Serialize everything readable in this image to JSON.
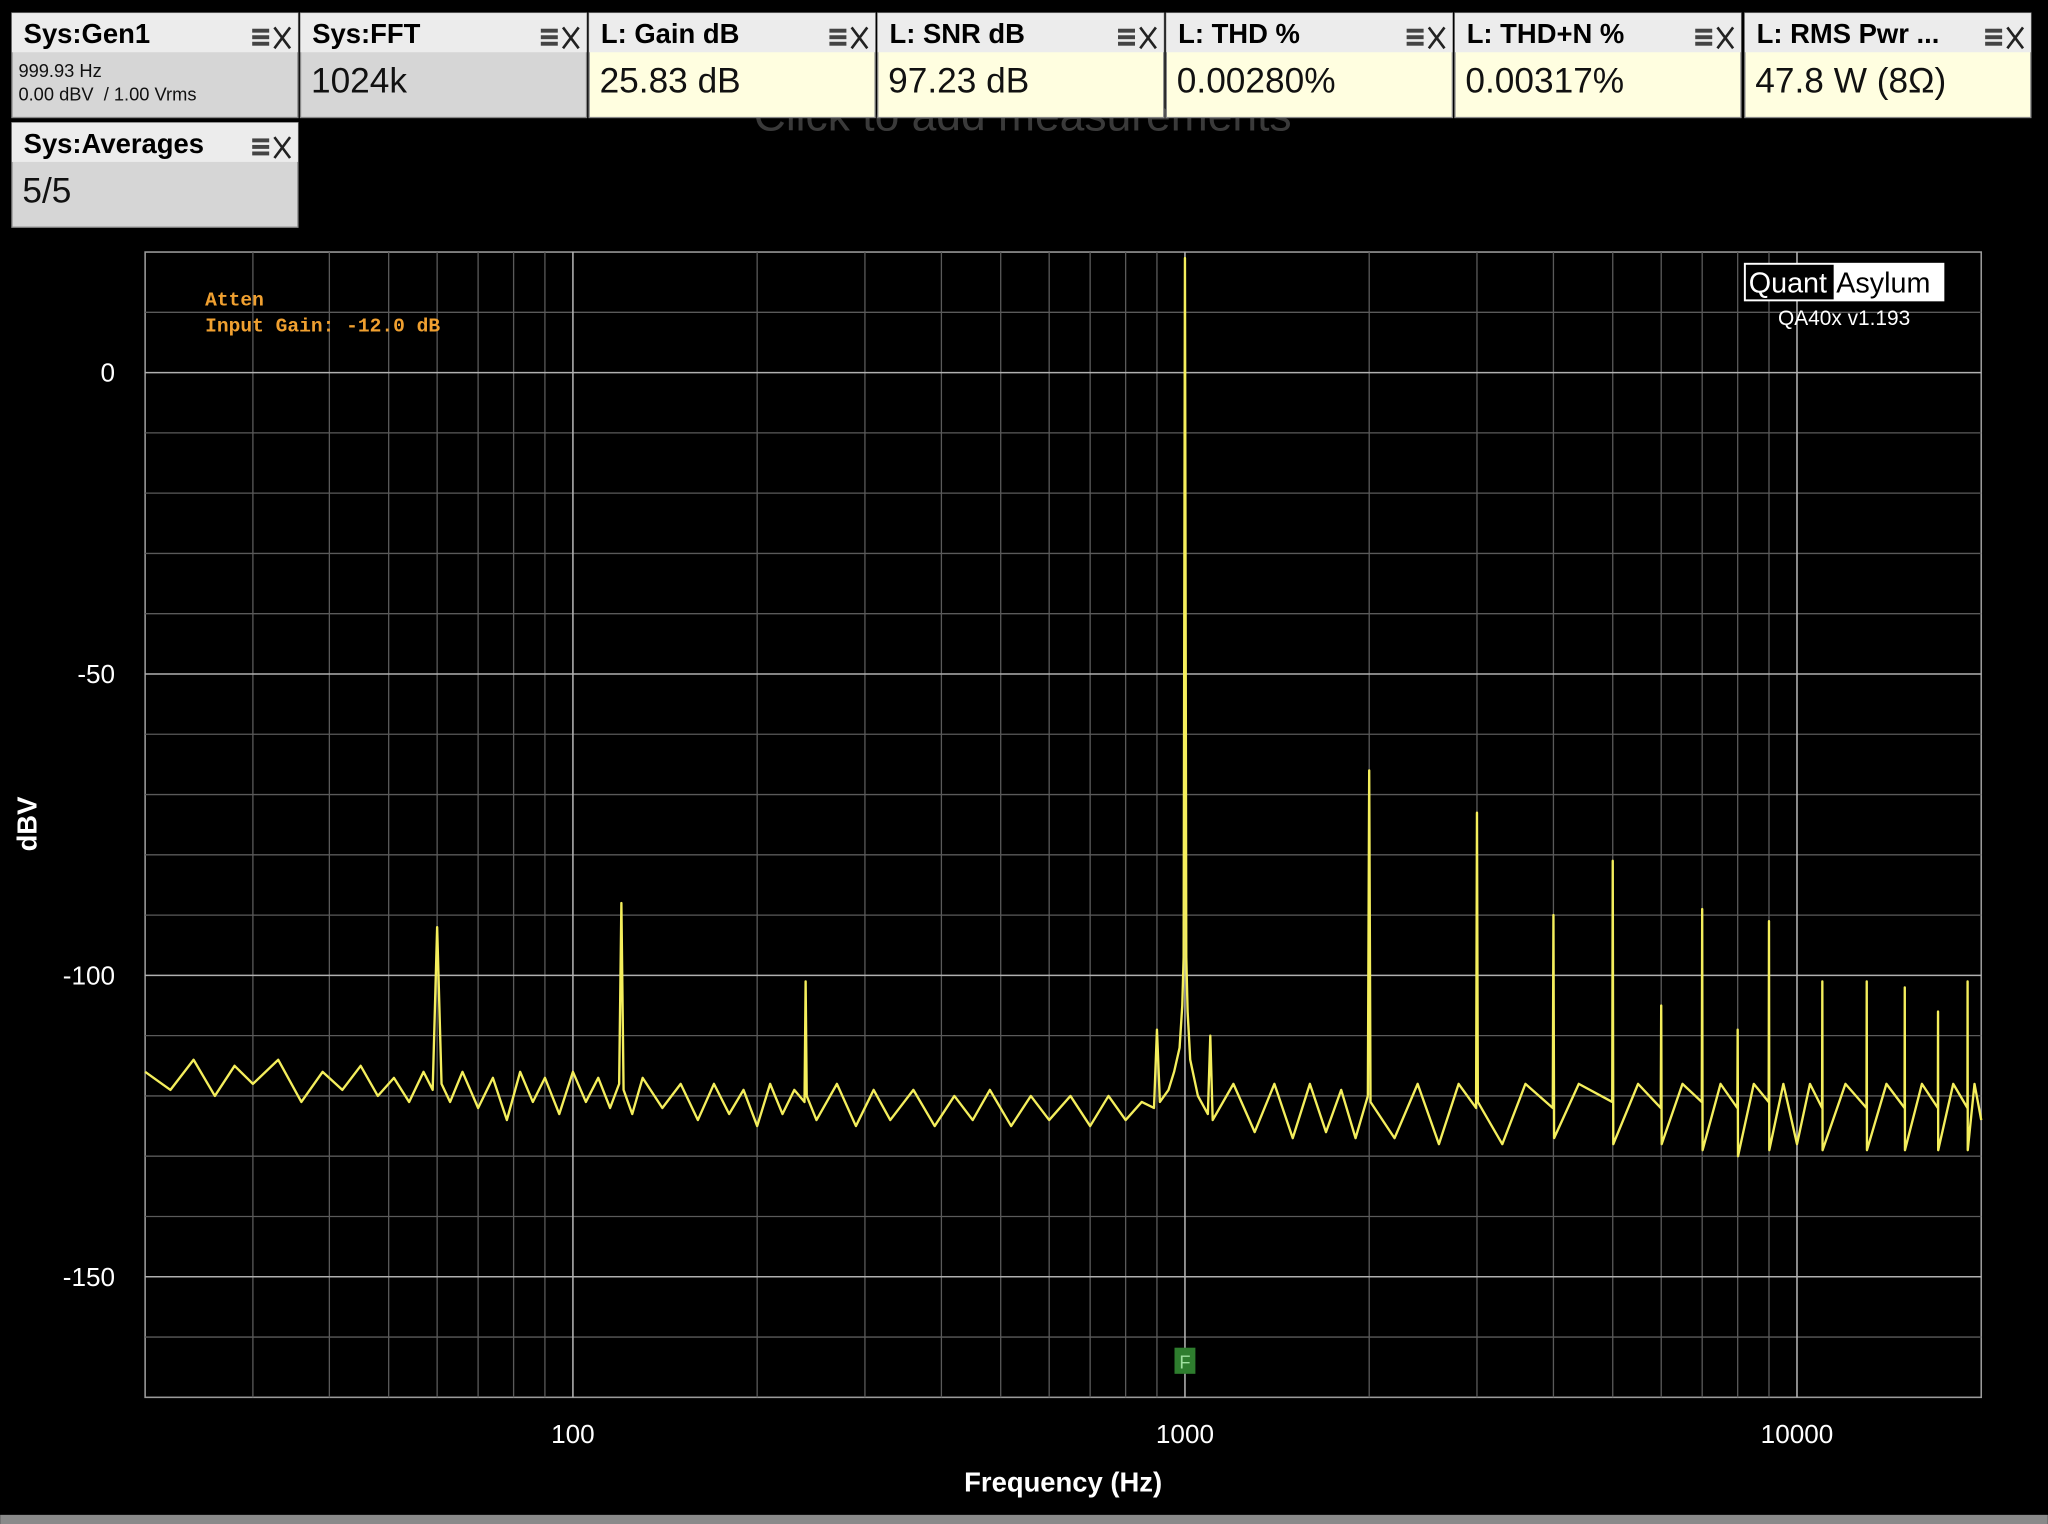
{
  "panels": [
    {
      "title": "Sys:Gen1",
      "details": [
        "999.93 Hz",
        "0.00 dBV  / 1.00 Vrms"
      ],
      "color": "#d6d6d6"
    },
    {
      "title": "Sys:FFT",
      "value": "1024k",
      "color": "#d6d6d6"
    },
    {
      "title": "L: Gain dB",
      "value": "25.83 dB",
      "color": "#fffee0"
    },
    {
      "title": "L: SNR dB",
      "value": "97.23 dB",
      "color": "#fffee0"
    },
    {
      "title": "L: THD %",
      "value": "0.00280%",
      "color": "#fffee0"
    },
    {
      "title": "L: THD+N %",
      "value": "0.00317%",
      "color": "#fffee0"
    },
    {
      "title": "L: RMS Pwr ...",
      "value": "47.8 W (8Ω)",
      "color": "#fffee0"
    },
    {
      "title": "Sys:Averages",
      "value": "5/5",
      "color": "#d6d6d6"
    }
  ],
  "placeholder": "Click to add measurements",
  "chart_data": {
    "type": "line",
    "x_label": "Frequency (Hz)",
    "y_label": "dBV",
    "x_scale": "log",
    "xlim": [
      20,
      20000
    ],
    "xticks": [
      100,
      1000,
      10000
    ],
    "x_minor_grid": [
      30,
      40,
      50,
      60,
      70,
      80,
      90,
      200,
      300,
      400,
      500,
      600,
      700,
      800,
      900,
      2000,
      3000,
      4000,
      5000,
      6000,
      7000,
      8000,
      9000
    ],
    "ylim": [
      -170,
      20
    ],
    "yticks": [
      0,
      -50,
      -100,
      -150
    ],
    "y_minor_grid": [
      -160,
      -140,
      -130,
      -120,
      -110,
      -90,
      -80,
      -70,
      -60,
      -40,
      -30,
      -20,
      -10,
      10
    ],
    "grid": true,
    "color": "#f4ee5c",
    "annotations": [
      "Atten",
      "Input Gain: -12.0 dB"
    ],
    "logo": [
      "Quant",
      "Asylum"
    ],
    "version": "QA40x v1.193",
    "marker": {
      "label": "F",
      "x": 1000
    },
    "x": [
      20,
      22,
      24,
      26,
      28,
      30,
      33,
      36,
      39,
      42,
      45,
      48,
      51,
      54,
      57,
      59,
      60,
      61,
      63,
      66,
      70,
      74,
      78,
      82,
      86,
      90,
      95,
      100,
      105,
      110,
      115,
      119,
      120,
      121,
      125,
      130,
      140,
      150,
      160,
      170,
      180,
      190,
      200,
      210,
      220,
      230,
      239,
      240,
      241,
      250,
      270,
      290,
      310,
      330,
      360,
      390,
      420,
      450,
      480,
      520,
      560,
      600,
      650,
      700,
      750,
      800,
      850,
      890,
      900,
      910,
      940,
      960,
      980,
      990,
      995,
      1000,
      1005,
      1010,
      1020,
      1050,
      1090,
      1100,
      1110,
      1200,
      1300,
      1400,
      1500,
      1600,
      1700,
      1800,
      1900,
      1990,
      2000,
      2010,
      2200,
      2400,
      2600,
      2800,
      2990,
      3000,
      3010,
      3300,
      3600,
      3990,
      4000,
      4010,
      4400,
      4990,
      5000,
      5010,
      5500,
      5990,
      6000,
      6010,
      6500,
      6990,
      7000,
      7010,
      7500,
      7990,
      8000,
      8010,
      8500,
      8990,
      9000,
      9010,
      9500,
      10000,
      10500,
      10990,
      11000,
      11010,
      12000,
      12990,
      13000,
      13010,
      14000,
      14990,
      15000,
      15010,
      16000,
      16990,
      17000,
      17010,
      18000,
      18990,
      19000,
      19010,
      19500,
      20000
    ],
    "values": [
      -116,
      -119,
      -114,
      -120,
      -115,
      -118,
      -114,
      -121,
      -116,
      -119,
      -115,
      -120,
      -117,
      -121,
      -116,
      -119,
      -92,
      -118,
      -121,
      -116,
      -122,
      -117,
      -124,
      -116,
      -121,
      -117,
      -123,
      -116,
      -121,
      -117,
      -122,
      -118,
      -88,
      -119,
      -123,
      -117,
      -122,
      -118,
      -124,
      -118,
      -123,
      -119,
      -125,
      -118,
      -123,
      -119,
      -121,
      -101,
      -120,
      -124,
      -118,
      -125,
      -119,
      -124,
      -119,
      -125,
      -120,
      -124,
      -119,
      -125,
      -120,
      -124,
      -120,
      -125,
      -120,
      -124,
      -121,
      -122,
      -109,
      -121,
      -119,
      -116,
      -112,
      -105,
      -97,
      19,
      -97,
      -106,
      -114,
      -120,
      -123,
      -110,
      -124,
      -118,
      -126,
      -118,
      -127,
      -118,
      -126,
      -119,
      -127,
      -120,
      -66,
      -121,
      -127,
      -118,
      -128,
      -118,
      -122,
      -73,
      -121,
      -128,
      -118,
      -122,
      -90,
      -127,
      -118,
      -121,
      -81,
      -128,
      -118,
      -122,
      -105,
      -128,
      -118,
      -121,
      -89,
      -129,
      -118,
      -122,
      -109,
      -130,
      -118,
      -121,
      -91,
      -129,
      -118,
      -128,
      -118,
      -122,
      -101,
      -129,
      -118,
      -122,
      -101,
      -129,
      -118,
      -122,
      -102,
      -129,
      -118,
      -122,
      -106,
      -129,
      -118,
      -122,
      -101,
      -129,
      -118,
      -124
    ]
  }
}
